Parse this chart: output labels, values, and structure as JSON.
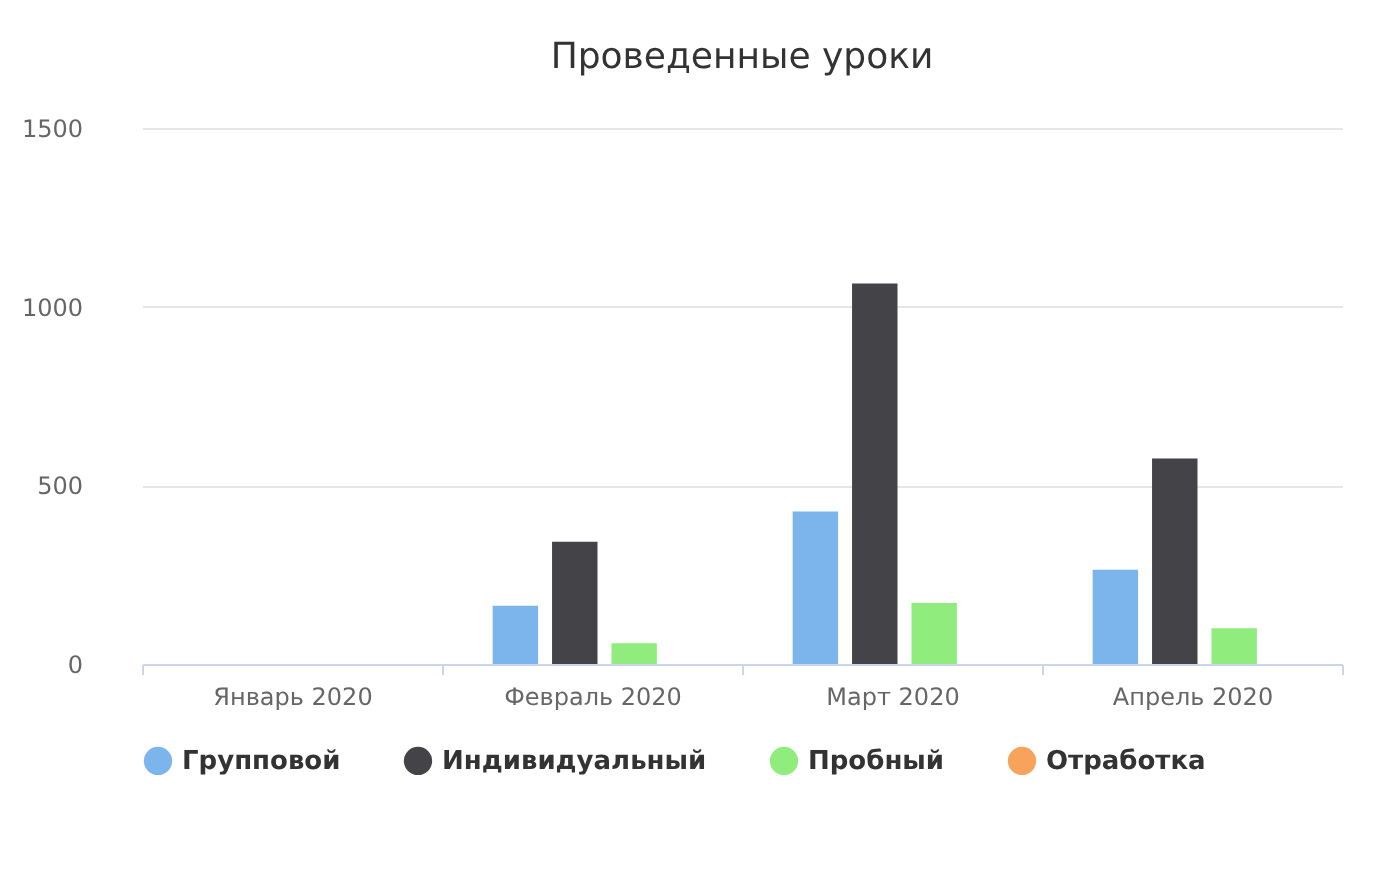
{
  "chart_data": {
    "type": "bar",
    "title": "Проведенные уроки",
    "categories": [
      "Январь 2020",
      "Февраль 2020",
      "Март 2020",
      "Апрель 2020"
    ],
    "series": [
      {
        "name": "Групповой",
        "color": "#7cb5ec",
        "values": [
          0,
          163,
          427,
          264
        ]
      },
      {
        "name": "Индивидуальный",
        "color": "#434348",
        "values": [
          0,
          342,
          1065,
          575
        ]
      },
      {
        "name": "Пробный",
        "color": "#90ed7d",
        "values": [
          0,
          58,
          171,
          100
        ]
      },
      {
        "name": "Отработка",
        "color": "#f7a35c",
        "values": [
          0,
          0,
          0,
          0
        ]
      }
    ],
    "ylim": [
      0,
      1500
    ],
    "yticks": [
      0,
      500,
      1000,
      1500
    ],
    "grid": "y",
    "legend": "bottom"
  }
}
